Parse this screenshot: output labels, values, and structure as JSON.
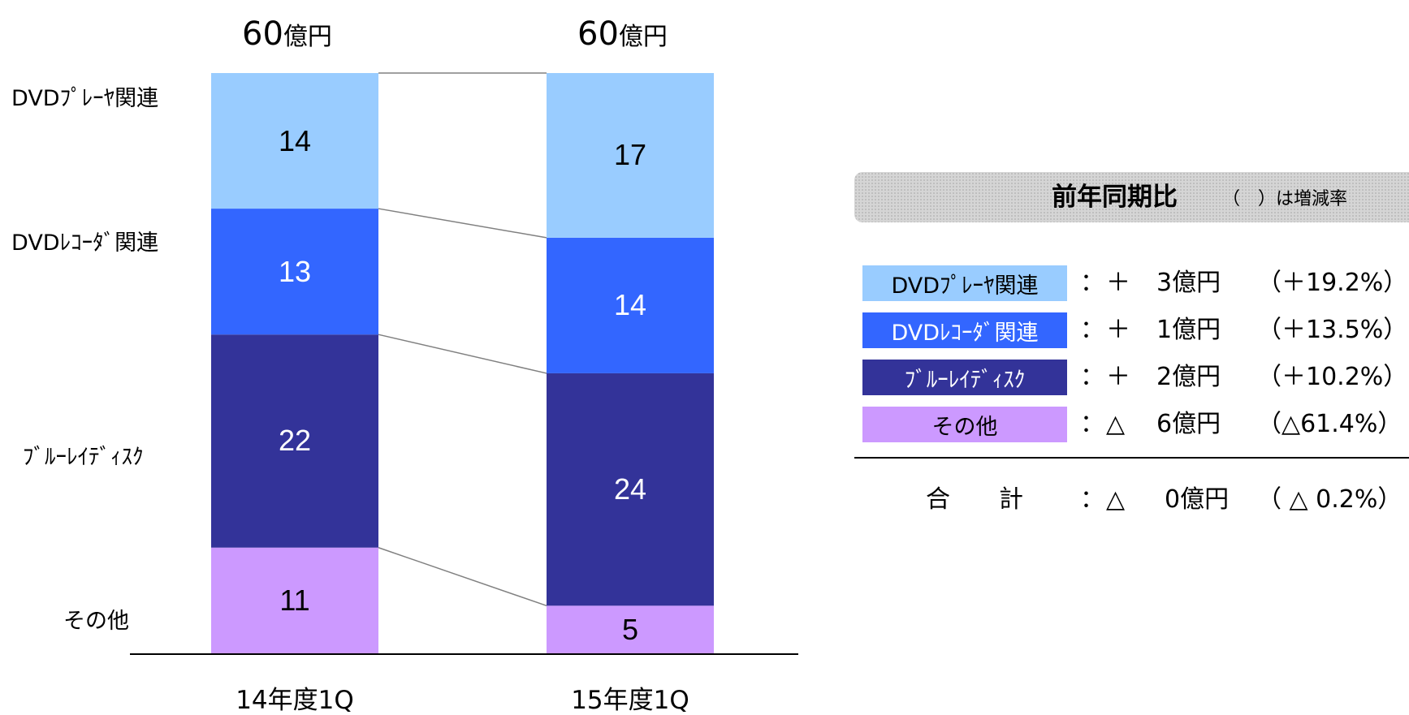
{
  "chart_data": {
    "type": "bar",
    "stacked": true,
    "categories": [
      "14年度1Q",
      "15年度1Q"
    ],
    "totals": [
      "60",
      "60"
    ],
    "total_unit": "億円",
    "series": [
      {
        "name": "その他",
        "values": [
          11,
          5
        ],
        "color": "#cc99ff",
        "text_color": "#000000"
      },
      {
        "name": "ブルーレイディスク",
        "values": [
          22,
          24
        ],
        "color": "#333399",
        "text_color": "#ffffff"
      },
      {
        "name": "DVDレコーダ関連",
        "values": [
          13,
          14
        ],
        "color": "#3366ff",
        "text_color": "#ffffff"
      },
      {
        "name": "DVDプレーヤ関連",
        "values": [
          14,
          17
        ],
        "color": "#99ccff",
        "text_color": "#000000"
      }
    ],
    "axis_labels": [
      "DVDﾌﾟﾚｰﾔ関連",
      "DVDﾚｺｰﾀﾞ関連",
      "ﾌﾞﾙｰﾚｲﾃﾞｨｽｸ",
      "その他"
    ],
    "connector_lines": true,
    "ylim": [
      0,
      60
    ]
  },
  "yoy": {
    "title": "前年同期比",
    "note": "（　）は増減率",
    "rows": [
      {
        "label": "DVDﾌﾟﾚｰﾔ関連",
        "color": "#99ccff",
        "text_color": "#000000",
        "colon": "：",
        "sign": "＋",
        "amount": "3億円",
        "rate": "（＋19.2%）"
      },
      {
        "label": "DVDﾚｺｰﾀﾞ関連",
        "color": "#3366ff",
        "text_color": "#ffffff",
        "colon": "：",
        "sign": "＋",
        "amount": "1億円",
        "rate": "（＋13.5%）"
      },
      {
        "label": "ﾌﾞﾙｰﾚｲﾃﾞｨｽｸ",
        "color": "#333399",
        "text_color": "#ffffff",
        "colon": "：",
        "sign": "＋",
        "amount": "2億円",
        "rate": "（＋10.2%）"
      },
      {
        "label": "その他",
        "color": "#cc99ff",
        "text_color": "#000000",
        "colon": "：",
        "sign": "△",
        "amount": "6億円",
        "rate": "（△61.4%）"
      }
    ],
    "total": {
      "label": "合　　計",
      "colon": "：",
      "sign": "△",
      "amount": "0億円",
      "rate": "（ △ 0.2%）"
    }
  }
}
